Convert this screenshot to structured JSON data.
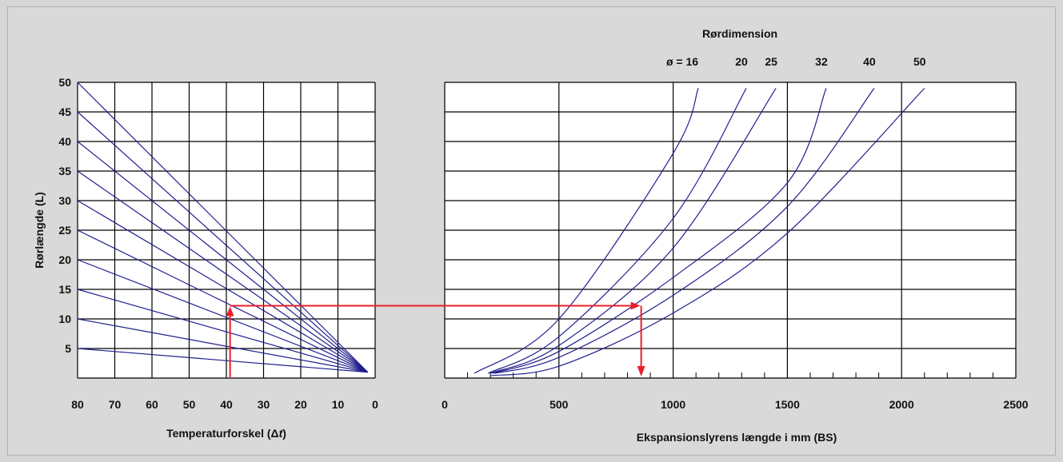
{
  "chart_data": [
    {
      "type": "line",
      "title": "",
      "xlabel_main": "Temperaturforskel (",
      "xlabel_symbol": "Δ",
      "xlabel_var": "t",
      "xlabel_close": ")",
      "ylabel": "Rørlængde (L)",
      "xlim": [
        80,
        0
      ],
      "ylim": [
        0,
        50
      ],
      "x_ticks": [
        "80",
        "70",
        "60",
        "50",
        "40",
        "30",
        "20",
        "10",
        "0"
      ],
      "y_ticks": [
        "5",
        "10",
        "15",
        "20",
        "25",
        "30",
        "35",
        "40",
        "45",
        "50"
      ],
      "grid": true,
      "series_note": "lines fan from (2,1) to x=80",
      "series": [
        {
          "values": [
            [
              80,
              5
            ],
            [
              2,
              1
            ]
          ]
        },
        {
          "values": [
            [
              80,
              10
            ],
            [
              2,
              1
            ]
          ]
        },
        {
          "values": [
            [
              80,
              15
            ],
            [
              2,
              1
            ]
          ]
        },
        {
          "values": [
            [
              80,
              20
            ],
            [
              2,
              1
            ]
          ]
        },
        {
          "values": [
            [
              80,
              25
            ],
            [
              2,
              1
            ]
          ]
        },
        {
          "values": [
            [
              80,
              30
            ],
            [
              2,
              1
            ]
          ]
        },
        {
          "values": [
            [
              80,
              35
            ],
            [
              2,
              1
            ]
          ]
        },
        {
          "values": [
            [
              80,
              40
            ],
            [
              2,
              1
            ]
          ]
        },
        {
          "values": [
            [
              80,
              45
            ],
            [
              2,
              1
            ]
          ]
        },
        {
          "values": [
            [
              80,
              50
            ],
            [
              2,
              1
            ]
          ]
        }
      ],
      "example_path": [
        [
          39,
          0
        ],
        [
          39,
          12
        ]
      ]
    },
    {
      "type": "line",
      "title": "Rørdimension",
      "xlabel": "Ekspansionslyrens længde i mm (BS)",
      "ylabel": "",
      "xlim": [
        0,
        2500
      ],
      "ylim": [
        0,
        50
      ],
      "x_ticks": [
        "0",
        "500",
        "1000",
        "1500",
        "2000",
        "2500"
      ],
      "grid": true,
      "series": [
        {
          "name": "ø = 16",
          "values": [
            [
              130,
              0.8
            ],
            [
              500,
              10
            ],
            [
              1000,
              38
            ],
            [
              1110,
              49
            ]
          ]
        },
        {
          "name": "20",
          "values": [
            [
              190,
              0.8
            ],
            [
              500,
              7
            ],
            [
              1000,
              27
            ],
            [
              1320,
              49
            ]
          ]
        },
        {
          "name": "25",
          "values": [
            [
              200,
              0.8
            ],
            [
              500,
              5.5
            ],
            [
              1000,
              22
            ],
            [
              1450,
              49
            ]
          ]
        },
        {
          "name": "32",
          "values": [
            [
              210,
              0.8
            ],
            [
              500,
              4.5
            ],
            [
              1000,
              17
            ],
            [
              1500,
              33
            ],
            [
              1670,
              49
            ]
          ]
        },
        {
          "name": "40",
          "values": [
            [
              220,
              0.8
            ],
            [
              500,
              3.5
            ],
            [
              1000,
              14
            ],
            [
              1500,
              29
            ],
            [
              1880,
              49
            ]
          ]
        },
        {
          "name": "50",
          "values": [
            [
              200,
              0.4
            ],
            [
              500,
              2
            ],
            [
              1000,
              11
            ],
            [
              1500,
              24.5
            ],
            [
              2100,
              49
            ]
          ]
        }
      ],
      "example_path": [
        [
          860,
          12.5
        ],
        [
          860,
          0
        ]
      ],
      "connector_y": 12.5
    }
  ],
  "colors": {
    "curve": "#1f1f8f",
    "grid": "#000000",
    "arrow": "#e8202a",
    "background": "#d9d9d9",
    "plot_bg": "#ffffff"
  }
}
